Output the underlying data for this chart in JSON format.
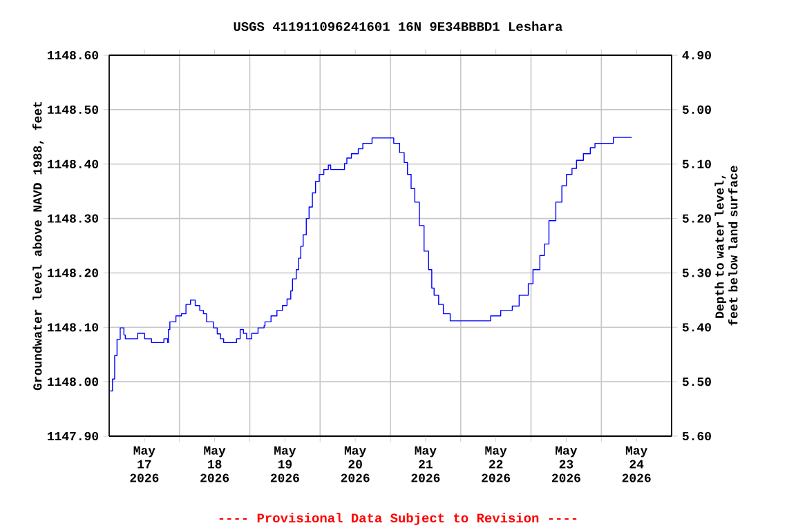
{
  "chart_data": {
    "type": "step",
    "title": "USGS 411911096241601 16N  9E34BBBD1 Leshara",
    "ylabel": "Groundwater level above NAVD 1988, feet",
    "y2label": "Depth to water level, feet below land surface",
    "annotations": [
      "---- Provisional Data Subject to Revision ----"
    ],
    "grid": true,
    "xlim": [
      "2026-05-16T12:00",
      "2026-05-24T12:00"
    ],
    "xticks": [
      {
        "value": "2026-05-17T00:00",
        "label": "May 17 2026"
      },
      {
        "value": "2026-05-18T00:00",
        "label": "May 18 2026"
      },
      {
        "value": "2026-05-19T00:00",
        "label": "May 19 2026"
      },
      {
        "value": "2026-05-20T00:00",
        "label": "May 20 2026"
      },
      {
        "value": "2026-05-21T00:00",
        "label": "May 21 2026"
      },
      {
        "value": "2026-05-22T00:00",
        "label": "May 22 2026"
      },
      {
        "value": "2026-05-23T00:00",
        "label": "May 23 2026"
      },
      {
        "value": "2026-05-24T00:00",
        "label": "May 24 2026"
      },
      {
        "value": "2026-05-17T12:00",
        "label": null
      },
      {
        "value": "2026-05-18T12:00",
        "label": null
      },
      {
        "value": "2026-05-19T12:00",
        "label": null
      },
      {
        "value": "2026-05-20T12:00",
        "label": null
      },
      {
        "value": "2026-05-21T12:00",
        "label": null
      },
      {
        "value": "2026-05-22T12:00",
        "label": null
      },
      {
        "value": "2026-05-23T12:00",
        "label": null
      }
    ],
    "ylim": [
      1147.9,
      1148.6
    ],
    "yticks": [
      {
        "value": 1147.9,
        "label": "1147.90"
      },
      {
        "value": 1148.0,
        "label": "1148.00"
      },
      {
        "value": 1148.1,
        "label": "1148.10"
      },
      {
        "value": 1148.2,
        "label": "1148.20"
      },
      {
        "value": 1148.3,
        "label": "1148.30"
      },
      {
        "value": 1148.4,
        "label": "1148.40"
      },
      {
        "value": 1148.5,
        "label": "1148.50"
      },
      {
        "value": 1148.6,
        "label": "1148.60"
      }
    ],
    "y2lim": [
      5.6,
      4.9
    ],
    "y2ticks": [
      {
        "value": 4.9,
        "label": "4.90"
      },
      {
        "value": 5.0,
        "label": "5.00"
      },
      {
        "value": 5.1,
        "label": "5.10"
      },
      {
        "value": 5.2,
        "label": "5.20"
      },
      {
        "value": 5.3,
        "label": "5.30"
      },
      {
        "value": 5.4,
        "label": "5.40"
      },
      {
        "value": 5.5,
        "label": "5.50"
      },
      {
        "value": 5.6,
        "label": "5.60"
      }
    ],
    "series": [
      {
        "color": "#0000ff",
        "x": [
          "2026-05-16T12:20",
          "2026-05-16T13:08",
          "2026-05-16T13:53",
          "2026-05-16T14:41",
          "2026-05-16T15:46",
          "2026-05-16T17:02",
          "2026-05-16T17:30",
          "2026-05-16T20:56",
          "2026-05-16T21:44",
          "2026-05-16T23:17",
          "2026-05-17T00:05",
          "2026-05-17T02:07",
          "2026-05-17T02:27",
          "2026-05-17T05:36",
          "2026-05-17T06:41",
          "2026-05-17T07:57",
          "2026-05-17T08:14",
          "2026-05-17T08:43",
          "2026-05-17T10:19",
          "2026-05-17T10:47",
          "2026-05-17T12:40",
          "2026-05-17T14:13",
          "2026-05-17T15:46",
          "2026-05-17T16:53",
          "2026-05-17T17:22",
          "2026-05-17T18:35",
          "2026-05-17T18:55",
          "2026-05-17T20:11",
          "2026-05-17T21:16",
          "2026-05-17T22:49",
          "2026-05-17T23:37",
          "2026-05-18T00:53",
          "2026-05-18T01:59",
          "2026-05-18T03:04",
          "2026-05-18T06:13",
          "2026-05-18T07:29",
          "2026-05-18T08:43",
          "2026-05-18T09:50",
          "2026-05-18T10:55",
          "2026-05-18T12:11",
          "2026-05-18T12:40",
          "2026-05-18T14:32",
          "2026-05-18T14:49",
          "2026-05-18T16:53",
          "2026-05-18T17:11",
          "2026-05-18T19:15",
          "2026-05-18T21:16",
          "2026-05-18T23:09",
          "2026-05-19T00:43",
          "2026-05-19T01:59",
          "2026-05-19T02:35",
          "2026-05-19T03:52",
          "2026-05-19T04:40",
          "2026-05-19T05:25",
          "2026-05-19T06:13",
          "2026-05-19T07:17",
          "2026-05-19T08:14",
          "2026-05-19T09:22",
          "2026-05-19T10:27",
          "2026-05-19T11:43",
          "2026-05-19T13:16",
          "2026-05-19T14:49",
          "2026-05-19T15:37",
          "2026-05-19T19:32",
          "2026-05-19T20:20",
          "2026-05-19T21:08",
          "2026-05-19T22:41",
          "2026-05-20T01:02",
          "2026-05-20T02:35",
          "2026-05-20T04:56",
          "2026-05-20T05:44",
          "2026-05-20T12:00",
          "2026-05-20T13:08",
          "2026-05-20T15:09",
          "2026-05-20T16:42",
          "2026-05-20T17:50",
          "2026-05-20T19:04",
          "2026-05-20T20:20",
          "2026-05-20T21:53",
          "2026-05-20T23:29",
          "2026-05-21T01:02",
          "2026-05-21T02:07",
          "2026-05-21T02:55",
          "2026-05-21T04:28",
          "2026-05-21T06:04",
          "2026-05-21T08:25",
          "2026-05-21T21:44",
          "2026-05-21T22:13",
          "2026-05-22T01:39",
          "2026-05-22T05:36",
          "2026-05-22T07:57",
          "2026-05-22T11:04",
          "2026-05-22T12:40",
          "2026-05-22T15:01",
          "2026-05-22T16:34",
          "2026-05-22T18:07",
          "2026-05-22T20:28",
          "2026-05-22T22:32",
          "2026-05-23T00:06",
          "2026-05-23T01:59",
          "2026-05-23T03:32",
          "2026-05-23T05:53",
          "2026-05-23T08:14",
          "2026-05-23T09:50",
          "2026-05-23T15:46",
          "2026-05-23T16:06",
          "2026-05-23T22:22"
        ],
        "values": [
          1147.983,
          1148.005,
          1148.048,
          1148.078,
          1148.099,
          1148.086,
          1148.079,
          1148.079,
          1148.089,
          1148.089,
          1148.079,
          1148.079,
          1148.072,
          1148.072,
          1148.079,
          1148.072,
          1148.096,
          1148.11,
          1148.11,
          1148.121,
          1148.125,
          1148.142,
          1148.15,
          1148.15,
          1148.14,
          1148.14,
          1148.131,
          1148.125,
          1148.11,
          1148.11,
          1148.099,
          1148.088,
          1148.079,
          1148.072,
          1148.072,
          1148.079,
          1148.096,
          1148.089,
          1148.079,
          1148.079,
          1148.089,
          1148.089,
          1148.099,
          1148.103,
          1148.11,
          1148.121,
          1148.131,
          1148.14,
          1148.152,
          1148.167,
          1148.189,
          1148.206,
          1148.227,
          1148.249,
          1148.27,
          1148.3,
          1148.321,
          1148.347,
          1148.368,
          1148.381,
          1148.39,
          1148.398,
          1148.39,
          1148.39,
          1148.401,
          1148.411,
          1148.419,
          1148.428,
          1148.438,
          1148.438,
          1148.448,
          1148.448,
          1148.438,
          1148.421,
          1148.403,
          1148.381,
          1148.355,
          1148.33,
          1148.287,
          1148.24,
          1148.206,
          1148.172,
          1148.159,
          1148.142,
          1148.125,
          1148.112,
          1148.112,
          1148.121,
          1148.131,
          1148.139,
          1148.159,
          1148.18,
          1148.206,
          1148.232,
          1148.253,
          1148.296,
          1148.33,
          1148.36,
          1148.381,
          1148.392,
          1148.407,
          1148.419,
          1148.43,
          1148.438,
          1148.438,
          1148.449,
          1148.449
        ]
      }
    ]
  }
}
